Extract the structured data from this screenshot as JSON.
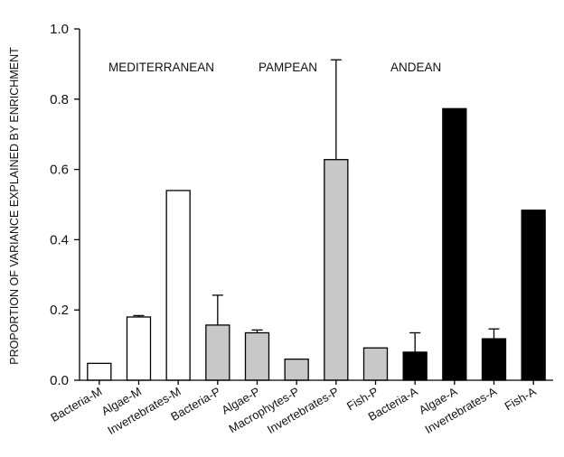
{
  "chart_data": {
    "type": "bar",
    "title": "",
    "xlabel": "",
    "ylabel": "PROPORTION OF VARIANCE EXPLAINED BY ENRICHMENT",
    "ylim": [
      0,
      1.0
    ],
    "yticks": [
      0.0,
      0.2,
      0.4,
      0.6,
      0.8,
      1.0
    ],
    "ytick_labels": [
      "0.0",
      "0.2",
      "0.4",
      "0.6",
      "0.8",
      "1.0"
    ],
    "grid": false,
    "region_labels": [
      {
        "text": "MEDITERRANEAN",
        "group": "M"
      },
      {
        "text": "PAMPEAN",
        "group": "P"
      },
      {
        "text": "ANDEAN",
        "group": "A"
      }
    ],
    "categories": [
      "Bacteria-M",
      "Algae-M",
      "Invertebrates-M",
      "Bacteria-P",
      "Algae-P",
      "Macrophytes-P",
      "Invertebrates-P",
      "Fish-P",
      "Bacteria-A",
      "Algae-A",
      "Invertebrates-A",
      "Fish-A"
    ],
    "values": [
      0.048,
      0.18,
      0.54,
      0.157,
      0.135,
      0.06,
      0.628,
      0.092,
      0.08,
      0.773,
      0.118,
      0.484
    ],
    "error_upper": [
      null,
      0.184,
      null,
      0.242,
      0.143,
      null,
      0.912,
      null,
      0.135,
      null,
      0.146,
      null
    ],
    "groups": [
      "M",
      "M",
      "M",
      "P",
      "P",
      "P",
      "P",
      "P",
      "A",
      "A",
      "A",
      "A"
    ],
    "group_colors": {
      "M": "#ffffff",
      "P": "#c8c8c8",
      "A": "#000000"
    }
  }
}
